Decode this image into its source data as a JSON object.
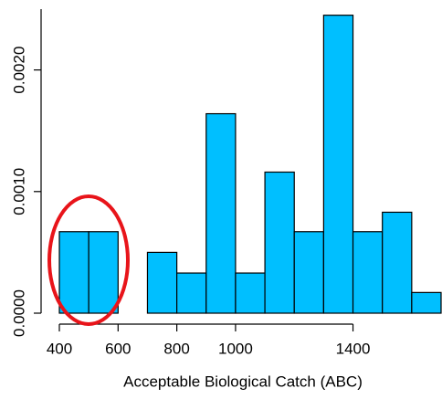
{
  "chart_data": {
    "type": "histogram",
    "x_label": "Acceptable Biological Catch (ABC)",
    "bins": [
      400,
      500,
      600,
      700,
      800,
      900,
      1000,
      1100,
      1200,
      1300,
      1400,
      1500,
      1600,
      1700
    ],
    "values": [
      0.00067,
      0.00067,
      0,
      0.0005,
      0.00033,
      0.00164,
      0.00033,
      0.00116,
      0.00067,
      0.00245,
      0.00067,
      0.00083,
      0.00017
    ],
    "color": "#00bfff",
    "xlim": [
      400,
      1700
    ],
    "xticks": [
      400,
      600,
      800,
      1000,
      1400
    ],
    "ylim": [
      0,
      0.0025
    ],
    "yticks": [
      {
        "value": 0,
        "label": "0.0000"
      },
      {
        "value": 0.001,
        "label": "0.0010"
      },
      {
        "value": 0.002,
        "label": "0.0020"
      }
    ]
  }
}
